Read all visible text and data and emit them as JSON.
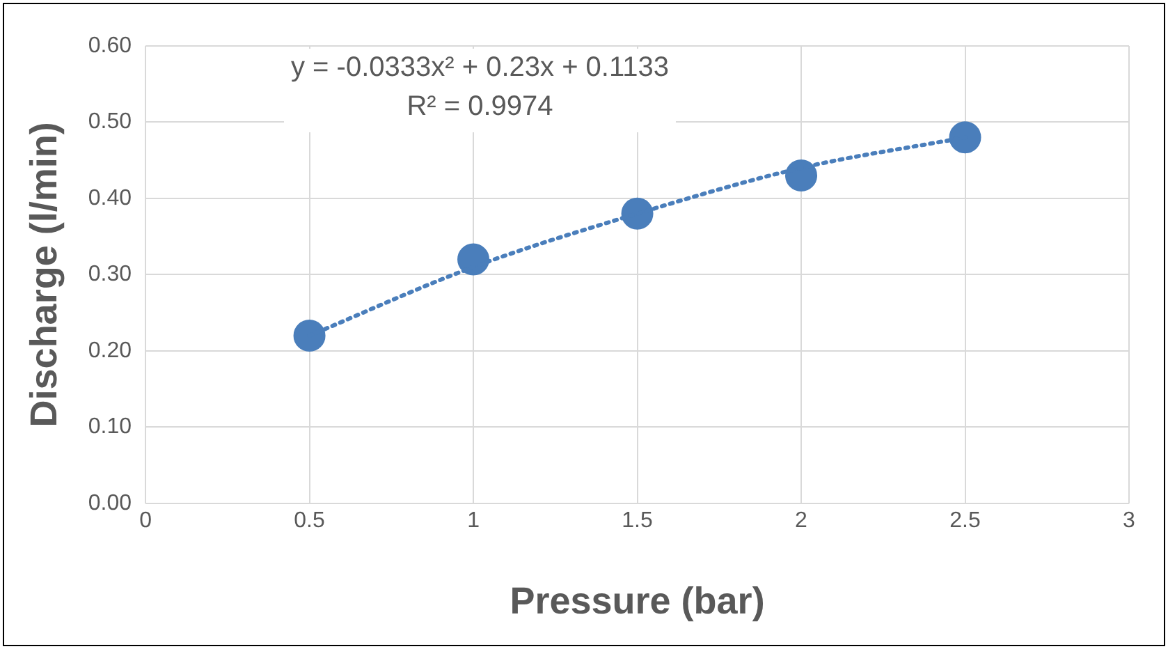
{
  "chart_data": {
    "type": "scatter",
    "xlabel": "Pressure (bar)",
    "ylabel": "Discharge (l/min)",
    "x": [
      0.5,
      1,
      1.5,
      2,
      2.5
    ],
    "series": [
      {
        "color": "#4a7ebb",
        "values": [
          0.22,
          0.32,
          0.38,
          0.43,
          0.48
        ],
        "marker": "circle"
      },
      {
        "type": "line",
        "color": "#4a7ebb",
        "x": [
          0.5,
          1,
          1.5,
          2,
          2.5
        ],
        "values": [
          0.22,
          0.31,
          0.38,
          0.44,
          0.48
        ],
        "marker": "none",
        "line_style": "dotted"
      }
    ],
    "xlim": [
      0,
      3
    ],
    "xticks": [
      0,
      0.5,
      1,
      1.5,
      2,
      2.5,
      3
    ],
    "ylim": [
      0,
      0.6
    ],
    "yticks": [
      {
        "value": 0,
        "label": "0.00"
      },
      {
        "value": 0.1,
        "label": "0.10"
      },
      {
        "value": 0.2,
        "label": "0.20"
      },
      {
        "value": 0.3,
        "label": "0.30"
      },
      {
        "value": 0.4,
        "label": "0.40"
      },
      {
        "value": 0.5,
        "label": "0.50"
      },
      {
        "value": 0.6,
        "label": "0.60"
      }
    ],
    "grid": true,
    "legend": false,
    "annotations": [
      "y = -0.0333x² + 0.23x + 0.1133",
      "R² = 0.9974"
    ]
  }
}
